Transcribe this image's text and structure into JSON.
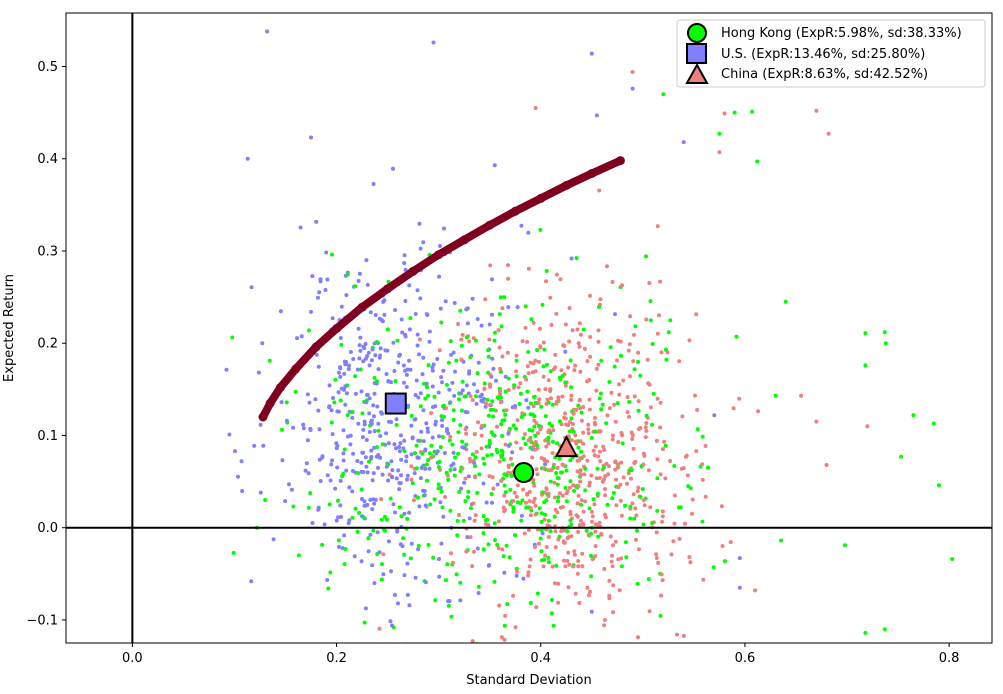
{
  "chart_data": {
    "type": "scatter",
    "title": "",
    "xlabel": "Standard Deviation",
    "ylabel": "Expected Return",
    "xlim": [
      -0.065,
      0.842
    ],
    "ylim": [
      -0.125,
      0.558
    ],
    "xticks": [
      0.0,
      0.2,
      0.4,
      0.6,
      0.8
    ],
    "xtick_labels": [
      "0.0",
      "0.2",
      "0.4",
      "0.6",
      "0.8"
    ],
    "yticks": [
      -0.1,
      0.0,
      0.1,
      0.2,
      0.3,
      0.4,
      0.5
    ],
    "ytick_labels": [
      "−0.1",
      "0.0",
      "0.1",
      "0.2",
      "0.3",
      "0.4",
      "0.5"
    ],
    "grid": false,
    "reference_lines": {
      "x": 0.0,
      "y": 0.0
    },
    "legend_position": "top-right",
    "legend": [
      {
        "label": "Hong Kong (ExpR:5.98%, sd:38.33%)",
        "marker": "circle",
        "color": "#00ff00"
      },
      {
        "label": "U.S. (ExpR:13.46%, sd:25.80%)",
        "marker": "square",
        "color": "#8080ff"
      },
      {
        "label": "China (ExpR:8.63%, sd:42.52%)",
        "marker": "triangle",
        "color": "#f08080"
      }
    ],
    "highlighted_points": [
      {
        "name": "Hong Kong",
        "x": 0.3833,
        "y": 0.0598,
        "marker": "circle",
        "color": "#00ff00"
      },
      {
        "name": "U.S.",
        "x": 0.258,
        "y": 0.1346,
        "marker": "square",
        "color": "#8080ff"
      },
      {
        "name": "China",
        "x": 0.4252,
        "y": 0.0863,
        "marker": "triangle",
        "color": "#f08080"
      }
    ],
    "frontier": {
      "color": "#800020",
      "x": [
        0.128,
        0.135,
        0.145,
        0.16,
        0.18,
        0.2,
        0.225,
        0.25,
        0.275,
        0.3,
        0.325,
        0.35,
        0.375,
        0.4,
        0.425,
        0.45,
        0.478
      ],
      "y": [
        0.12,
        0.135,
        0.152,
        0.172,
        0.196,
        0.216,
        0.239,
        0.259,
        0.278,
        0.296,
        0.312,
        0.328,
        0.343,
        0.357,
        0.371,
        0.384,
        0.398
      ]
    },
    "scatter_clouds": [
      {
        "name": "blue",
        "color": "#8080ff",
        "center_x": 0.26,
        "center_y": 0.12,
        "sd_x": 0.06,
        "sd_y": 0.09,
        "count": 520,
        "outliers": [
          [
            0.132,
            0.538
          ],
          [
            0.295,
            0.526
          ],
          [
            0.45,
            0.514
          ],
          [
            0.49,
            0.476
          ],
          [
            0.175,
            0.423
          ],
          [
            0.113,
            0.4
          ],
          [
            0.095,
            0.101
          ],
          [
            0.107,
            0.072
          ],
          [
            0.57,
            0.122
          ],
          [
            0.595,
            -0.033
          ],
          [
            0.595,
            -0.065
          ],
          [
            0.455,
            0.447
          ],
          [
            0.54,
            0.418
          ]
        ]
      },
      {
        "name": "red",
        "color": "#f08080",
        "center_x": 0.43,
        "center_y": 0.08,
        "sd_x": 0.065,
        "sd_y": 0.085,
        "count": 620,
        "outliers": [
          [
            0.58,
            0.449
          ],
          [
            0.67,
            0.452
          ],
          [
            0.682,
            0.427
          ],
          [
            0.575,
            0.407
          ],
          [
            0.49,
            0.494
          ],
          [
            0.655,
            0.143
          ],
          [
            0.67,
            0.115
          ],
          [
            0.72,
            0.11
          ],
          [
            0.68,
            0.068
          ],
          [
            0.61,
            -0.068
          ],
          [
            0.578,
            -0.02
          ],
          [
            0.395,
            0.455
          ]
        ]
      },
      {
        "name": "green",
        "color": "#00ff00",
        "center_x": 0.37,
        "center_y": 0.08,
        "sd_x": 0.09,
        "sd_y": 0.09,
        "count": 520,
        "outliers": [
          [
            0.59,
            0.45
          ],
          [
            0.607,
            0.451
          ],
          [
            0.612,
            0.397
          ],
          [
            0.575,
            0.427
          ],
          [
            0.52,
            0.47
          ],
          [
            0.64,
            0.245
          ],
          [
            0.63,
            0.143
          ],
          [
            0.718,
            0.211
          ],
          [
            0.737,
            0.212
          ],
          [
            0.738,
            0.2
          ],
          [
            0.718,
            0.176
          ],
          [
            0.765,
            0.122
          ],
          [
            0.785,
            0.113
          ],
          [
            0.753,
            0.077
          ],
          [
            0.79,
            0.046
          ],
          [
            0.803,
            -0.034
          ],
          [
            0.698,
            -0.019
          ],
          [
            0.737,
            -0.11
          ],
          [
            0.718,
            -0.114
          ],
          [
            0.122,
            0.0
          ],
          [
            0.13,
            0.03
          ],
          [
            0.163,
            -0.03
          ]
        ]
      }
    ]
  }
}
